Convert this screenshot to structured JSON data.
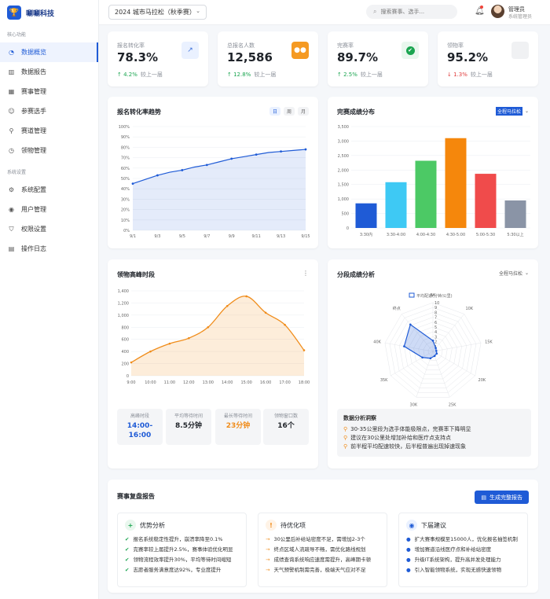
{
  "app": {
    "name": "唰唰科技",
    "logo_icon": "trophy-icon"
  },
  "sidebar": {
    "groups": [
      {
        "label": "核心功能",
        "items": [
          {
            "label": "数据概览",
            "icon": "dashboard-icon",
            "active": true
          },
          {
            "label": "数据报告",
            "icon": "bar-chart-icon"
          },
          {
            "label": "赛事管理",
            "icon": "calendar-icon"
          },
          {
            "label": "参赛选手",
            "icon": "users-icon"
          },
          {
            "label": "赛道管理",
            "icon": "map-pin-icon"
          },
          {
            "label": "领物管理",
            "icon": "clock-icon"
          }
        ]
      },
      {
        "label": "系统设置",
        "items": [
          {
            "label": "系统配置",
            "icon": "gear-icon"
          },
          {
            "label": "用户管理",
            "icon": "user-circle-icon"
          },
          {
            "label": "权限设置",
            "icon": "shield-icon"
          },
          {
            "label": "操作日志",
            "icon": "document-icon"
          }
        ]
      }
    ]
  },
  "header": {
    "season": "2024 城市马拉松（秋季赛）",
    "search_placeholder": "搜索赛事、选手...",
    "user": {
      "name": "管理员",
      "role": "系统管理员"
    }
  },
  "stats": [
    {
      "label": "报名转化率",
      "value": "78.3%",
      "trend": "↑ 4.2%",
      "dir": "up",
      "compare": "较上一届",
      "icon": "line-chart-icon",
      "icon_color": "#3b6fd8",
      "icon_bg": "#eaf1ff",
      "icon_glyph": "↗"
    },
    {
      "label": "总报名人数",
      "value": "12,586",
      "trend": "↑ 12.8%",
      "dir": "up",
      "compare": "较上一届",
      "icon": "users-icon",
      "icon_color": "#ffffff",
      "icon_bg": "#f59a23",
      "icon_glyph": "●●"
    },
    {
      "label": "完赛率",
      "value": "89.7%",
      "trend": "↑ 2.5%",
      "dir": "up",
      "compare": "较上一届",
      "icon": "check-circle-icon",
      "icon_color": "#ffffff",
      "icon_bg": "#e9f7ee",
      "icon_glyph": "✔"
    },
    {
      "label": "领物率",
      "value": "95.2%",
      "trend": "↓ 1.3%",
      "dir": "down",
      "compare": "较上一届",
      "icon": "box-icon",
      "icon_color": "#bbbbbb",
      "icon_bg": "#f0f1f3",
      "icon_glyph": ""
    }
  ],
  "trend_card": {
    "title": "报名转化率趋势",
    "tabs": [
      "日",
      "周",
      "月"
    ],
    "active_tab": 0
  },
  "dist_card": {
    "title": "完赛成绩分布",
    "select": "全程马拉松"
  },
  "peak_card": {
    "title": "领物高峰时段",
    "minis": [
      {
        "label": "高峰时段",
        "value": "14:00-\n16:00",
        "color": "#1f5bd6"
      },
      {
        "label": "平均等待时间",
        "value": "8.5分钟",
        "color": "#1f2329"
      },
      {
        "label": "最长等待时间",
        "value": "23分钟",
        "color": "#f08c1a"
      },
      {
        "label": "领物窗口数",
        "value": "16个",
        "color": "#1f2329"
      }
    ]
  },
  "split_card": {
    "title": "分段成绩分析",
    "select": "全程马拉松",
    "insight_title": "数据分析洞察",
    "insights": [
      "30-35公里段为选手体能极限点，完赛率下降明显",
      "建议在30公里处增加补给和医疗点支持点",
      "前半程平均配速较快，后半程普遍出现掉速现象"
    ]
  },
  "report": {
    "title": "赛事复盘报告",
    "button": "生成完整报告",
    "sections": [
      {
        "title": "优势分析",
        "badge": "+",
        "badge_bg": "#e9f7ee",
        "badge_color": "#1aa550",
        "bullet": "✔",
        "bullet_color": "#1aa550",
        "items": [
          "报名系统稳定性提升，崩溃率降至0.1%",
          "完赛率较上届提升2.5%，赛事体验优化明显",
          "领物流程效率提升30%，平均等待时间缩短",
          "志愿者服务满意度达92%，专业度提升"
        ]
      },
      {
        "title": "待优化项",
        "badge": "!",
        "badge_bg": "#fff3e6",
        "badge_color": "#f08c1a",
        "bullet": "→",
        "bullet_color": "#f08c1a",
        "items": [
          "30公里后补给站密度不足，需增加2-3个",
          "终点区域人流疏导不畅，需优化路线规划",
          "成绩查询系统响应速度需提升，高峰期卡顿",
          "天气预警机制需完善，极端天气应对不足"
        ]
      },
      {
        "title": "下届建议",
        "badge": "◉",
        "badge_bg": "#eaf1ff",
        "badge_color": "#1f5bd6",
        "bullet": "●",
        "bullet_color": "#1f5bd6",
        "items": [
          "扩大赛事规模至15000人，优化报名抽签机制",
          "增加赛道沿线医疗点和补给站密度",
          "升级IT系统架构，提升高并发处理能力",
          "引入智能领物系统，实现无感快速领物"
        ]
      }
    ]
  },
  "chart_data": [
    {
      "type": "area",
      "title": "报名转化率趋势",
      "x": [
        "9/1",
        "9/2",
        "9/3",
        "9/4",
        "9/5",
        "9/6",
        "9/7",
        "9/8",
        "9/9",
        "9/10",
        "9/11",
        "9/12",
        "9/13",
        "9/14",
        "9/15"
      ],
      "x_ticks": [
        "9/1",
        "9/3",
        "9/5",
        "9/7",
        "9/9",
        "9/11",
        "9/13",
        "9/15"
      ],
      "values": [
        45,
        49,
        53,
        56,
        58,
        61,
        63,
        66,
        69,
        71,
        73,
        75,
        76,
        77,
        78
      ],
      "ylim": [
        0,
        100
      ],
      "y_ticks": [
        0,
        10,
        20,
        30,
        40,
        50,
        60,
        70,
        80,
        90,
        100
      ],
      "y_suffix": "%",
      "color": "#1f5bd6",
      "grid": true
    },
    {
      "type": "bar",
      "title": "完赛成绩分布",
      "categories": [
        "3:30内",
        "3:30-4:00",
        "4:00-4:30",
        "4:30-5:00",
        "5:00-5:30",
        "5:30以上"
      ],
      "values": [
        850,
        1580,
        2320,
        3100,
        1870,
        950
      ],
      "colors": [
        "#1f5bd6",
        "#3ec9f4",
        "#4cc965",
        "#f5870c",
        "#f04b4b",
        "#8a94a6"
      ],
      "ylim": [
        0,
        3500
      ],
      "y_ticks": [
        0,
        500,
        1000,
        1500,
        2000,
        2500,
        3000,
        3500
      ],
      "grid": true
    },
    {
      "type": "area",
      "title": "领物高峰时段",
      "x": [
        "9:00",
        "10:00",
        "11:00",
        "12:00",
        "13:00",
        "14:00",
        "15:00",
        "16:00",
        "17:00",
        "18:00"
      ],
      "values": [
        220,
        400,
        530,
        620,
        800,
        1150,
        1310,
        1040,
        840,
        420
      ],
      "ylim": [
        0,
        1400
      ],
      "y_ticks": [
        0,
        200,
        400,
        600,
        800,
        1000,
        1200,
        1400
      ],
      "color": "#f08c1a",
      "grid": true
    },
    {
      "type": "radar",
      "title": "分段成绩分析",
      "series_name": "平均配速(分钟/公里)",
      "axes": [
        "5K",
        "10K",
        "15K",
        "20K",
        "25K",
        "30K",
        "35K",
        "40K",
        "终点"
      ],
      "values": [
        2.2,
        0.9,
        0.7,
        0.9,
        1.0,
        1.5,
        2.5,
        6.0,
        7.2
      ],
      "max": 10,
      "ticks": [
        "1",
        "2",
        "3",
        "4",
        "5",
        "6",
        "7",
        "8",
        "9",
        "10"
      ],
      "color": "#1f5bd6"
    }
  ]
}
